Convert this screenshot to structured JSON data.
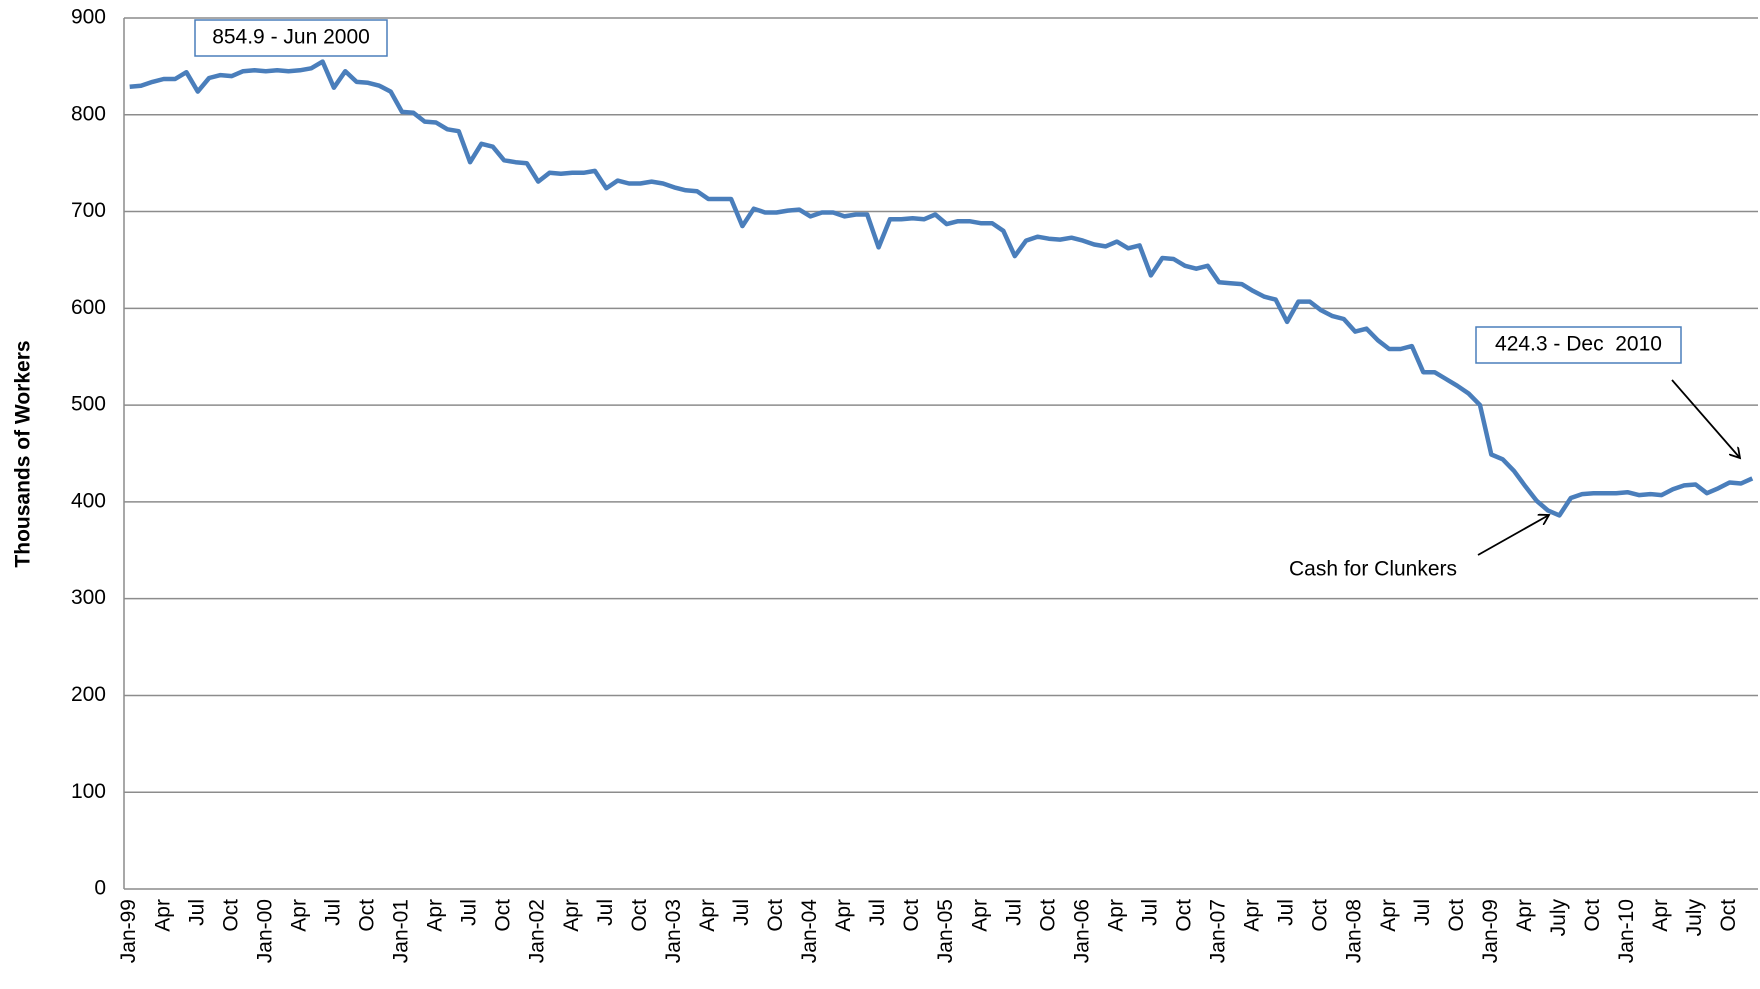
{
  "chart_data": {
    "type": "line",
    "y_label": "Thousands of Workers",
    "categories": [
      "Jan-99",
      null,
      null,
      "Apr",
      null,
      null,
      "Jul",
      null,
      null,
      "Oct",
      null,
      null,
      "Jan-00",
      null,
      null,
      "Apr",
      null,
      null,
      "Jul",
      null,
      null,
      "Oct",
      null,
      null,
      "Jan-01",
      null,
      null,
      "Apr",
      null,
      null,
      "Jul",
      null,
      null,
      "Oct",
      null,
      null,
      "Jan-02",
      null,
      null,
      "Apr",
      null,
      null,
      "Jul",
      null,
      null,
      "Oct",
      null,
      null,
      "Jan-03",
      null,
      null,
      "Apr",
      null,
      null,
      "Jul",
      null,
      null,
      "Oct",
      null,
      null,
      "Jan-04",
      null,
      null,
      "Apr",
      null,
      null,
      "Jul",
      null,
      null,
      "Oct",
      null,
      null,
      "Jan-05",
      null,
      null,
      "Apr",
      null,
      null,
      "Jul",
      null,
      null,
      "Oct",
      null,
      null,
      "Jan-06",
      null,
      null,
      "Apr",
      null,
      null,
      "Jul",
      null,
      null,
      "Oct",
      null,
      null,
      "Jan-07",
      null,
      null,
      "Apr",
      null,
      null,
      "Jul",
      null,
      null,
      "Oct",
      null,
      null,
      "Jan-08",
      null,
      null,
      "Apr",
      null,
      null,
      "Jul",
      null,
      null,
      "Oct",
      null,
      null,
      "Jan-09",
      null,
      null,
      "Apr",
      null,
      null,
      "July",
      null,
      null,
      "Oct",
      null,
      null,
      "Jan-10",
      null,
      null,
      "Apr",
      null,
      null,
      "July",
      null,
      null,
      "Oct",
      null,
      null
    ],
    "values": [
      829,
      830,
      834,
      837,
      837,
      844,
      824,
      838,
      841,
      840,
      845,
      846,
      845,
      846,
      845,
      846,
      848,
      854.9,
      828,
      845,
      834,
      833,
      830,
      824,
      803,
      802,
      793,
      792,
      785,
      783,
      751,
      770,
      767,
      753,
      751,
      750,
      731,
      740,
      739,
      740,
      740,
      742,
      724,
      732,
      729,
      729,
      731,
      729,
      725,
      722,
      721,
      713,
      713,
      713,
      685,
      703,
      699,
      699,
      701,
      702,
      695,
      699,
      699,
      695,
      697,
      697,
      663,
      692,
      692,
      693,
      692,
      697,
      687,
      690,
      690,
      688,
      688,
      680,
      654,
      670,
      674,
      672,
      671,
      673,
      670,
      666,
      664,
      669,
      662,
      665,
      634,
      652,
      651,
      644,
      641,
      644,
      627,
      626,
      625,
      618,
      612,
      609,
      586,
      607,
      607,
      598,
      592,
      589,
      576,
      579,
      567,
      558,
      558,
      561,
      534,
      534,
      527,
      520,
      512,
      500,
      449,
      444,
      432,
      416,
      401,
      391,
      386,
      404,
      408,
      409,
      409,
      409,
      410,
      407,
      408,
      407,
      413,
      417,
      418,
      409,
      414,
      420,
      419,
      424.3
    ],
    "color": "#4a7ebb",
    "ylim": [
      0,
      900
    ],
    "yticks": [
      0,
      100,
      200,
      300,
      400,
      500,
      600,
      700,
      800,
      900
    ],
    "grid": true,
    "annotations": [
      {
        "text": "854.9 - Jun 2000"
      },
      {
        "text": "424.3 - Dec  2010"
      },
      {
        "text": "Cash for Clunkers"
      }
    ]
  }
}
